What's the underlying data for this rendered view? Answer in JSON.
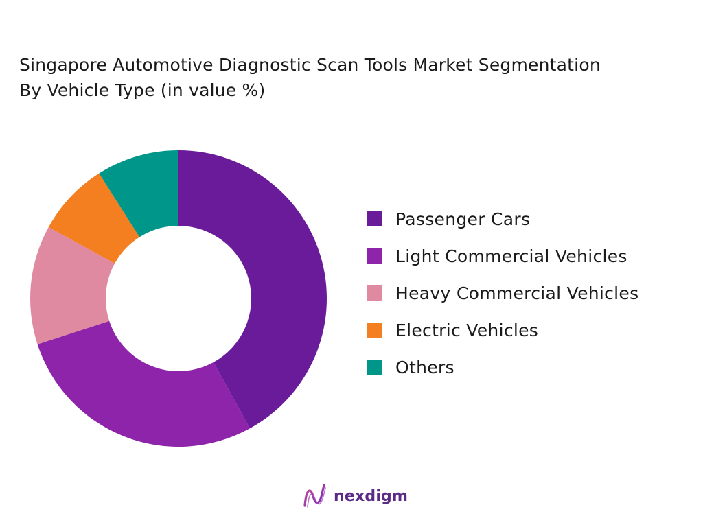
{
  "chart_data": {
    "type": "pie",
    "donut": true,
    "title_lines": [
      "Singapore Automotive Diagnostic Scan Tools Market Segmentation",
      "By Vehicle Type (in value %)"
    ],
    "categories": [
      "Passenger Cars",
      "Light Commercial Vehicles",
      "Heavy Commercial Vehicles",
      "Electric Vehicles",
      "Others"
    ],
    "values": [
      42,
      28,
      13,
      8,
      9
    ],
    "colors": [
      "#6A1B9A",
      "#8E24AA",
      "#E08AA2",
      "#F47F20",
      "#00968A"
    ],
    "legend_position": "right"
  },
  "brand": {
    "name": "nexdigm",
    "logo_icon": "nexdigm-logo-icon"
  }
}
